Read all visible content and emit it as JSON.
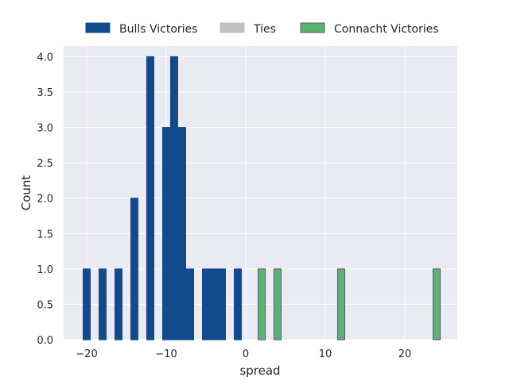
{
  "chart_data": {
    "type": "bar",
    "title": "",
    "xlabel": "spread",
    "ylabel": "Count",
    "xlim": [
      -22.9,
      26.6
    ],
    "ylim": [
      0,
      4.15
    ],
    "xticks": [
      -20,
      -10,
      0,
      10,
      20
    ],
    "xtick_labels": [
      "−20",
      "−10",
      "0",
      "10",
      "20"
    ],
    "yticks": [
      0,
      0.5,
      1,
      1.5,
      2,
      2.5,
      3,
      3.5,
      4
    ],
    "ytick_labels": [
      "0.0",
      "0.5",
      "1.0",
      "1.5",
      "2.0",
      "2.5",
      "3.0",
      "3.5",
      "4.0"
    ],
    "grid": true,
    "legend_position": "top-center",
    "series": [
      {
        "name": "Bulls Victories",
        "color": "#114b8c",
        "edge": "#114b8c",
        "x": [
          -20,
          -18,
          -16,
          -14,
          -12,
          -10,
          -9,
          -8,
          -7,
          -5,
          -4,
          -3,
          -1
        ],
        "values": [
          1,
          1,
          1,
          2,
          4,
          3,
          4,
          3,
          1,
          1,
          1,
          1,
          1
        ]
      },
      {
        "name": "Ties",
        "color": "#c0c0c0",
        "edge": "#c0c0c0",
        "x": [],
        "values": []
      },
      {
        "name": "Connacht Victories",
        "color": "#5db174",
        "edge": "#5a5a5a",
        "x": [
          2,
          4,
          12,
          24
        ],
        "values": [
          1,
          1,
          1,
          1
        ]
      }
    ]
  }
}
